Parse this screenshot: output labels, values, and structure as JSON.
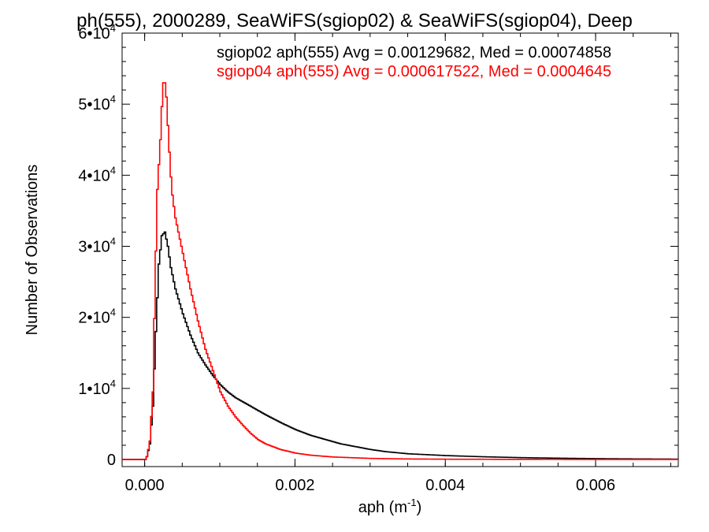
{
  "chart_data": {
    "type": "line",
    "title": "ph(555), 2000289, SeaWiFS(sgiop02) & SeaWiFS(sgiop04), Deep",
    "xlabel": "aph (m",
    "xlabel_sup": "-1",
    "xlabel_tail": ")",
    "ylabel": "Number of Observations",
    "xlim": [
      -0.0003,
      0.0071
    ],
    "ylim": [
      -1000,
      60000
    ],
    "x_ticks": [
      {
        "value": 0.0,
        "label": "0.000"
      },
      {
        "value": 0.002,
        "label": "0.002"
      },
      {
        "value": 0.004,
        "label": "0.004"
      },
      {
        "value": 0.006,
        "label": "0.006"
      }
    ],
    "y_ticks": [
      {
        "value": 0,
        "label": "0",
        "sup": ""
      },
      {
        "value": 10000,
        "label": "1•10",
        "sup": "4"
      },
      {
        "value": 20000,
        "label": "2•10",
        "sup": "4"
      },
      {
        "value": 30000,
        "label": "3•10",
        "sup": "4"
      },
      {
        "value": 40000,
        "label": "4•10",
        "sup": "4"
      },
      {
        "value": 50000,
        "label": "5•10",
        "sup": "4"
      },
      {
        "value": 60000,
        "label": "6•10",
        "sup": "4"
      }
    ],
    "series": [
      {
        "name": "sgiop02 aph(555) Avg = 0.00129682, Med = 0.00074858",
        "color": "#000000",
        "points": [
          [
            -0.0003,
            0
          ],
          [
            1e-05,
            0
          ],
          [
            3e-05,
            800
          ],
          [
            6e-05,
            2200
          ],
          [
            0.0001,
            7500
          ],
          [
            0.00014,
            18000
          ],
          [
            0.00018,
            27500
          ],
          [
            0.00022,
            31500
          ],
          [
            0.00026,
            32000
          ],
          [
            0.0003,
            30000
          ],
          [
            0.00034,
            27000
          ],
          [
            0.0004,
            24000
          ],
          [
            0.0005,
            20500
          ],
          [
            0.0006,
            17500
          ],
          [
            0.0007,
            15000
          ],
          [
            0.0008,
            13300
          ],
          [
            0.0009,
            11800
          ],
          [
            0.001,
            10500
          ],
          [
            0.0011,
            9500
          ],
          [
            0.0012,
            8700
          ],
          [
            0.0014,
            7500
          ],
          [
            0.0016,
            6300
          ],
          [
            0.0018,
            5200
          ],
          [
            0.002,
            4200
          ],
          [
            0.0022,
            3400
          ],
          [
            0.0024,
            2800
          ],
          [
            0.0026,
            2200
          ],
          [
            0.0028,
            1800
          ],
          [
            0.003,
            1400
          ],
          [
            0.0032,
            1100
          ],
          [
            0.0035,
            800
          ],
          [
            0.004,
            550
          ],
          [
            0.0045,
            380
          ],
          [
            0.005,
            260
          ],
          [
            0.0055,
            180
          ],
          [
            0.006,
            120
          ],
          [
            0.0065,
            80
          ],
          [
            0.0071,
            50
          ]
        ]
      },
      {
        "name": "sgiop04 aph(555) Avg = 0.000617522, Med = 0.0004645",
        "color": "#ff0000",
        "points": [
          [
            -0.0003,
            0
          ],
          [
            1e-05,
            0
          ],
          [
            3e-05,
            800
          ],
          [
            6e-05,
            2600
          ],
          [
            0.0001,
            9500
          ],
          [
            0.00013,
            25000
          ],
          [
            0.00016,
            38000
          ],
          [
            0.0002,
            45000
          ],
          [
            0.00023,
            52000
          ],
          [
            0.00025,
            54000
          ],
          [
            0.00028,
            51000
          ],
          [
            0.00031,
            45000
          ],
          [
            0.00035,
            38000
          ],
          [
            0.0004,
            34000
          ],
          [
            0.00045,
            31500
          ],
          [
            0.0005,
            29000
          ],
          [
            0.0006,
            24000
          ],
          [
            0.0007,
            19500
          ],
          [
            0.0008,
            15500
          ],
          [
            0.0009,
            12500
          ],
          [
            0.001,
            9500
          ],
          [
            0.0011,
            7500
          ],
          [
            0.0012,
            6000
          ],
          [
            0.0013,
            4800
          ],
          [
            0.0014,
            3700
          ],
          [
            0.0015,
            2800
          ],
          [
            0.0016,
            2200
          ],
          [
            0.0018,
            1400
          ],
          [
            0.002,
            900
          ],
          [
            0.0022,
            600
          ],
          [
            0.0025,
            350
          ],
          [
            0.003,
            150
          ],
          [
            0.0035,
            70
          ],
          [
            0.004,
            40
          ],
          [
            0.005,
            15
          ],
          [
            0.0071,
            0
          ]
        ]
      }
    ]
  }
}
